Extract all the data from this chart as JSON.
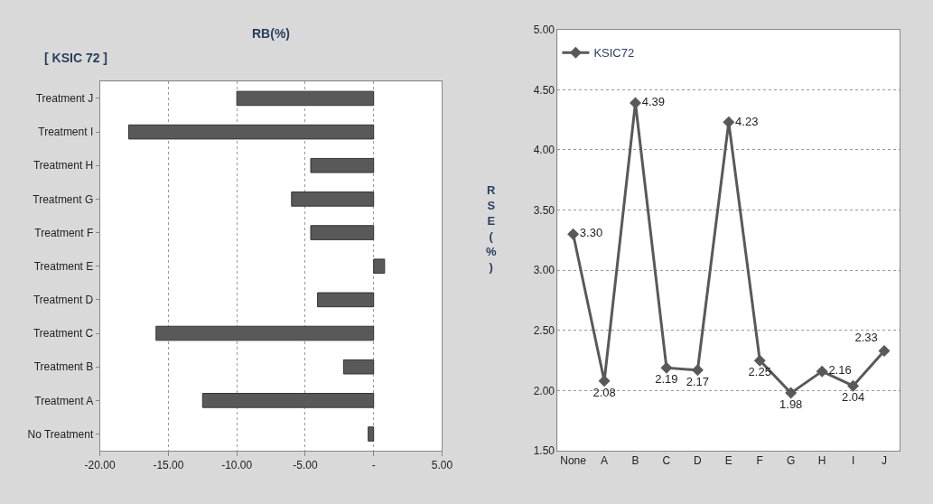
{
  "chart_data": [
    {
      "type": "bar",
      "orientation": "horizontal",
      "title": "RB(%)",
      "annotations": [
        "[ KSIC 72 ]"
      ],
      "categories": [
        "Treatment J",
        "Treatment I",
        "Treatment H",
        "Treatment G",
        "Treatment F",
        "Treatment E",
        "Treatment D",
        "Treatment C",
        "Treatment B",
        "Treatment A",
        "No Treatment"
      ],
      "values": [
        -10.0,
        -17.9,
        -4.6,
        -6.0,
        -4.6,
        0.8,
        -4.1,
        -15.9,
        -2.2,
        -12.5,
        -0.4
      ],
      "color": "#595959",
      "xlim": [
        -20,
        5
      ],
      "xticks": [
        {
          "value": -20,
          "label": "-20.00"
        },
        {
          "value": -15,
          "label": "-15.00"
        },
        {
          "value": -10,
          "label": "-10.00"
        },
        {
          "value": -5,
          "label": "-5.00"
        },
        {
          "value": 0,
          "label": "-"
        },
        {
          "value": 5,
          "label": "5.00"
        }
      ],
      "grid": "x",
      "legend": false
    },
    {
      "type": "line",
      "ylabel": "RSE(%)",
      "categories": [
        "None",
        "A",
        "B",
        "C",
        "D",
        "E",
        "F",
        "G",
        "H",
        "I",
        "J"
      ],
      "series": [
        {
          "name": "KSIC72",
          "color": "#595959",
          "values": [
            3.3,
            2.08,
            4.39,
            2.19,
            2.17,
            4.23,
            2.25,
            1.98,
            2.16,
            2.04,
            2.33
          ],
          "value_labels": [
            "3.30",
            "2.08",
            "4.39",
            "2.19",
            "2.17",
            "4.23",
            "2.25",
            "1.98",
            "2.16",
            "2.04",
            "2.33"
          ]
        }
      ],
      "ylim": [
        1.5,
        5
      ],
      "yticks": [
        {
          "value": 1.5,
          "label": "1.50"
        },
        {
          "value": 2,
          "label": "2.00"
        },
        {
          "value": 2.5,
          "label": "2.50"
        },
        {
          "value": 3,
          "label": "3.00"
        },
        {
          "value": 3.5,
          "label": "3.50"
        },
        {
          "value": 4,
          "label": "4.00"
        },
        {
          "value": 4.5,
          "label": "4.50"
        },
        {
          "value": 5,
          "label": "5.00"
        }
      ],
      "grid": "y",
      "legend": "top left",
      "marker": "diamond",
      "line_style": "solid"
    }
  ]
}
